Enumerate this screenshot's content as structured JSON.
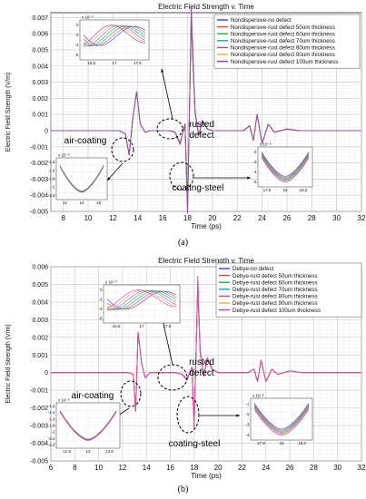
{
  "chart_data": [
    {
      "type": "line",
      "title": "Electric Field Strength v. Time",
      "xlabel": "Time (ps)",
      "ylabel": "Electric Field Strength (V/m)",
      "xlim": [
        7,
        32
      ],
      "ylim": [
        -0.005,
        0.0073
      ],
      "xticks": [
        "8",
        "10",
        "12",
        "14",
        "16",
        "18",
        "20",
        "22",
        "24",
        "26",
        "28",
        "30",
        "32"
      ],
      "yticks": [
        "0.007",
        "0.006",
        "0.005",
        "0.004",
        "0.003",
        "0.002",
        "0.001",
        "0",
        "-0.001",
        "-0.002",
        "-0.003",
        "-0.004",
        "-0.005"
      ],
      "grid": true,
      "legend_position": "top-right",
      "series": [
        {
          "name": "Nondispersive-no defect",
          "color": "#3a3af0"
        },
        {
          "name": "Nondispersive-rust defect 50um thickness",
          "color": "#e8433f"
        },
        {
          "name": "Nondispersive-rust defect 60um thickness",
          "color": "#2aaa4a"
        },
        {
          "name": "Nondispersive-rust defect 70um thickness",
          "color": "#1aa6a6"
        },
        {
          "name": "Nondispersive-rust defect 80um thickness",
          "color": "#c43fc4"
        },
        {
          "name": "Nondispersive-rust defect 90um thickness",
          "color": "#d9b43a"
        },
        {
          "name": "Nondispersive-rust defect 100um thickness",
          "color": "#8a3aa6"
        }
      ],
      "x": [
        7,
        12.5,
        13.0,
        13.3,
        13.6,
        13.9,
        14.2,
        14.6,
        15.0,
        16.5,
        17.0,
        17.4,
        17.8,
        18.0,
        18.3,
        18.6,
        18.9,
        19.2,
        19.6,
        20.0,
        22.5,
        23.0,
        23.3,
        23.6,
        24.0,
        24.5,
        25.0,
        26.0,
        27.0,
        28.0,
        29.0,
        30.0,
        32.0
      ],
      "y": [
        0,
        0,
        -0.0002,
        -0.0015,
        0.0008,
        0.0024,
        0.0004,
        -0.0001,
        0,
        0,
        -0.0001,
        -0.0008,
        0.0004,
        -0.0048,
        0.0071,
        0.0012,
        -0.0003,
        0.0006,
        0.0001,
        0,
        0,
        0.0003,
        -0.0006,
        0.001,
        -0.0008,
        0.0004,
        -0.0001,
        0.0001,
        0,
        0,
        0,
        0,
        0
      ],
      "annotations": [
        "air-coating",
        "rusted defect",
        "coating-steel"
      ],
      "insets": [
        {
          "yexp": "x 10⁻³",
          "xticks": [
            "16.5",
            "17",
            "17.5"
          ],
          "yticks": [
            "0",
            "-2",
            "-4",
            "-6"
          ]
        },
        {
          "yexp": "x 10⁻³",
          "xticks": [
            "13",
            "14",
            "15"
          ],
          "yticks": [
            "-1.4",
            "-1.6",
            "-1.8",
            "-2",
            "-2.2"
          ]
        },
        {
          "yexp": "x 10⁻³",
          "xticks": [
            "17.9",
            "18",
            "18.2"
          ],
          "yticks": [
            "-2",
            "-3",
            "-4",
            "-5"
          ]
        }
      ],
      "caption": "(a)"
    },
    {
      "type": "line",
      "title": "Electric Field Strength v. Time",
      "xlabel": "Time (ps)",
      "ylabel": "Electric Field Strength (V/m)",
      "xlim": [
        6,
        32
      ],
      "ylim": [
        -0.005,
        0.006
      ],
      "xticks": [
        "6",
        "8",
        "10",
        "12",
        "14",
        "16",
        "18",
        "20",
        "22",
        "24",
        "26",
        "28",
        "30",
        "32"
      ],
      "yticks": [
        "0.006",
        "0.005",
        "0.004",
        "0.003",
        "0.002",
        "0.001",
        "0",
        "-0.001",
        "-0.002",
        "-0.003",
        "-0.004",
        "-0.005"
      ],
      "grid": true,
      "legend_position": "top-right",
      "series": [
        {
          "name": "Debye-no defect",
          "color": "#3a3af0"
        },
        {
          "name": "Debye-rust defect 50um thickness",
          "color": "#e8433f"
        },
        {
          "name": "Debye-rust defect 60um thickness",
          "color": "#2aaa4a"
        },
        {
          "name": "Debye-rust defect 70um thickness",
          "color": "#1aa6a6"
        },
        {
          "name": "Debye-rust defect 80um thickness",
          "color": "#c43fc4"
        },
        {
          "name": "Debye-rust defect 90um thickness",
          "color": "#d9b43a"
        },
        {
          "name": "Debye-rust defect 100um thickness",
          "color": "#e23ab4"
        }
      ],
      "x": [
        6,
        12.5,
        12.9,
        13.1,
        13.3,
        13.6,
        13.9,
        14.3,
        15.0,
        16.5,
        17.0,
        17.4,
        17.8,
        18.0,
        18.3,
        18.5,
        18.8,
        19.1,
        19.5,
        20.0,
        22.5,
        23.0,
        23.3,
        23.6,
        24.0,
        24.5,
        25.0,
        26.0,
        27.0,
        28.0,
        29.0,
        30.0,
        32.0
      ],
      "y": [
        0,
        0,
        -0.0001,
        -0.0022,
        0.0023,
        0.0005,
        -0.0003,
        0,
        0,
        0,
        -0.0001,
        -0.0004,
        0.0003,
        -0.003,
        0.0051,
        0.0012,
        -0.0002,
        0.0008,
        0.0002,
        0,
        0,
        0.0002,
        -0.0005,
        0.0007,
        -0.0005,
        0.0002,
        -0.0001,
        0.0001,
        0,
        0,
        0,
        0,
        0
      ],
      "annotations": [
        "air-coating",
        "rusted defect",
        "coating-steel"
      ],
      "insets": [
        {
          "yexp": "x 10⁻³",
          "xticks": [
            "16.5",
            "17",
            "17.5"
          ],
          "yticks": [
            "0",
            "-2",
            "-4",
            "-6"
          ]
        },
        {
          "yexp": "x 10⁻³",
          "xticks": [
            "12.5",
            "13",
            "13.5"
          ],
          "yticks": [
            "-1.2",
            "-1.4",
            "-1.6",
            "-1.8",
            "-2",
            "-2.2",
            "-2.4"
          ]
        },
        {
          "yexp": "x 10⁻³",
          "xticks": [
            "17.9",
            "18",
            "18.2"
          ],
          "yticks": [
            "-1",
            "-2",
            "-3",
            "-4"
          ]
        }
      ],
      "caption": "(b)"
    }
  ]
}
